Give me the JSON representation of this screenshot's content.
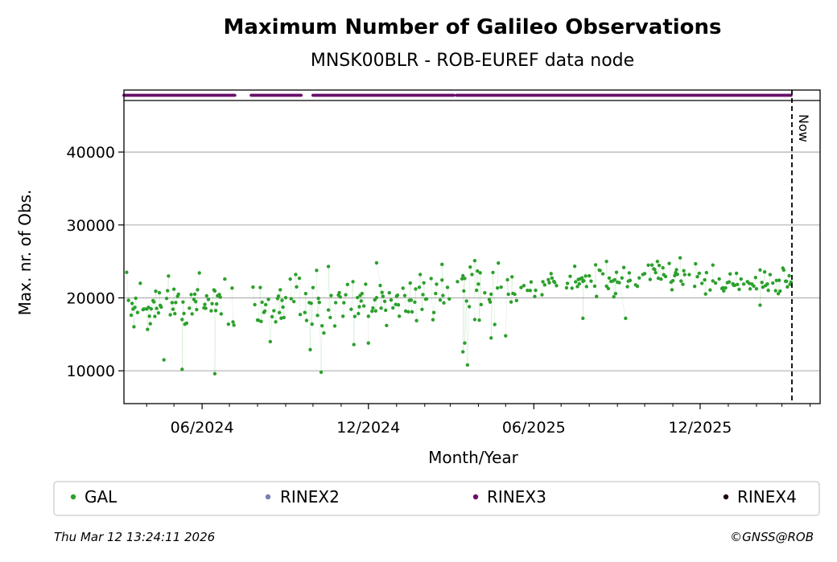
{
  "chart_data": {
    "type": "scatter",
    "title": "Maximum Number of Galileo Observations",
    "subtitle": "MNSK00BLR - ROB-EUREF data node",
    "xlabel": "Month/Year",
    "ylabel": "Max. nr. of Obs.",
    "x_range": [
      "2024-03-07",
      "2026-04-12"
    ],
    "ylim": [
      5500,
      48500
    ],
    "y_ticks": [
      10000,
      20000,
      30000,
      40000
    ],
    "x_ticks": [
      {
        "date": "2024-06-01",
        "label": "06/2024"
      },
      {
        "date": "2024-12-01",
        "label": "12/2024"
      },
      {
        "date": "2025-06-01",
        "label": "06/2025"
      },
      {
        "date": "2025-12-01",
        "label": "12/2025"
      }
    ],
    "grid": "y",
    "now_date": "2026-03-12",
    "now_label": "Now",
    "rinex3_availability": [
      [
        "2024-03-07",
        "2024-07-07"
      ],
      [
        "2024-07-25",
        "2024-09-18"
      ],
      [
        "2024-10-01",
        "2025-03-05"
      ],
      [
        "2025-03-08",
        "2026-03-11"
      ]
    ],
    "series": [
      {
        "name": "GAL",
        "color": "#2ca02c",
        "segments": [
          {
            "start": "2024-03-08",
            "end": "2024-07-06",
            "mean": 19200,
            "spread": 1800,
            "seed": 11,
            "outliers": [
              [
                "2024-04-20",
                11500
              ],
              [
                "2024-05-10",
                10200
              ],
              [
                "2024-06-15",
                9600
              ],
              [
                "2024-03-10",
                23500
              ],
              [
                "2024-04-25",
                23000
              ]
            ]
          },
          {
            "start": "2024-07-25",
            "end": "2024-12-20",
            "mean": 19600,
            "spread": 2000,
            "seed": 23,
            "outliers": [
              [
                "2024-09-28",
                12900
              ],
              [
                "2024-10-10",
                9800
              ],
              [
                "2024-08-15",
                14000
              ],
              [
                "2024-10-18",
                24300
              ],
              [
                "2024-11-15",
                13600
              ],
              [
                "2024-12-01",
                13800
              ]
            ]
          },
          {
            "start": "2024-12-20",
            "end": "2025-03-05",
            "mean": 20300,
            "spread": 1900,
            "seed": 37,
            "outliers": [
              [
                "2024-12-10",
                24800
              ],
              [
                "2025-02-20",
                24600
              ]
            ]
          },
          {
            "start": "2025-03-08",
            "end": "2025-05-15",
            "mean": 21000,
            "spread": 2500,
            "seed": 41,
            "outliers": [
              [
                "2025-03-15",
                12600
              ],
              [
                "2025-03-20",
                10800
              ],
              [
                "2025-03-17",
                13800
              ],
              [
                "2025-04-15",
                14500
              ],
              [
                "2025-05-01",
                14800
              ],
              [
                "2025-03-28",
                25100
              ]
            ]
          },
          {
            "start": "2025-05-15",
            "end": "2025-09-01",
            "mean": 22200,
            "spread": 1300,
            "seed": 53,
            "outliers": [
              [
                "2025-07-25",
                17200
              ],
              [
                "2025-08-20",
                25000
              ],
              [
                "2025-09-10",
                17200
              ]
            ]
          },
          {
            "start": "2025-09-01",
            "end": "2025-12-01",
            "mean": 23200,
            "spread": 1100,
            "seed": 67,
            "outliers": [
              [
                "2025-10-15",
                25000
              ]
            ]
          },
          {
            "start": "2025-12-01",
            "end": "2026-03-11",
            "mean": 22300,
            "spread": 1000,
            "seed": 79,
            "outliers": [
              [
                "2025-12-15",
                24500
              ],
              [
                "2026-02-05",
                19000
              ]
            ]
          }
        ]
      }
    ],
    "legend": [
      {
        "name": "GAL",
        "color": "#2ca02c"
      },
      {
        "name": "RINEX2",
        "color": "#7b7db5"
      },
      {
        "name": "RINEX3",
        "color": "#6a0f6b"
      },
      {
        "name": "RINEX4",
        "color": "#230016"
      }
    ]
  },
  "footer": {
    "timestamp": "Thu Mar 12 13:24:11 2026",
    "credit": "©GNSS@ROB"
  }
}
